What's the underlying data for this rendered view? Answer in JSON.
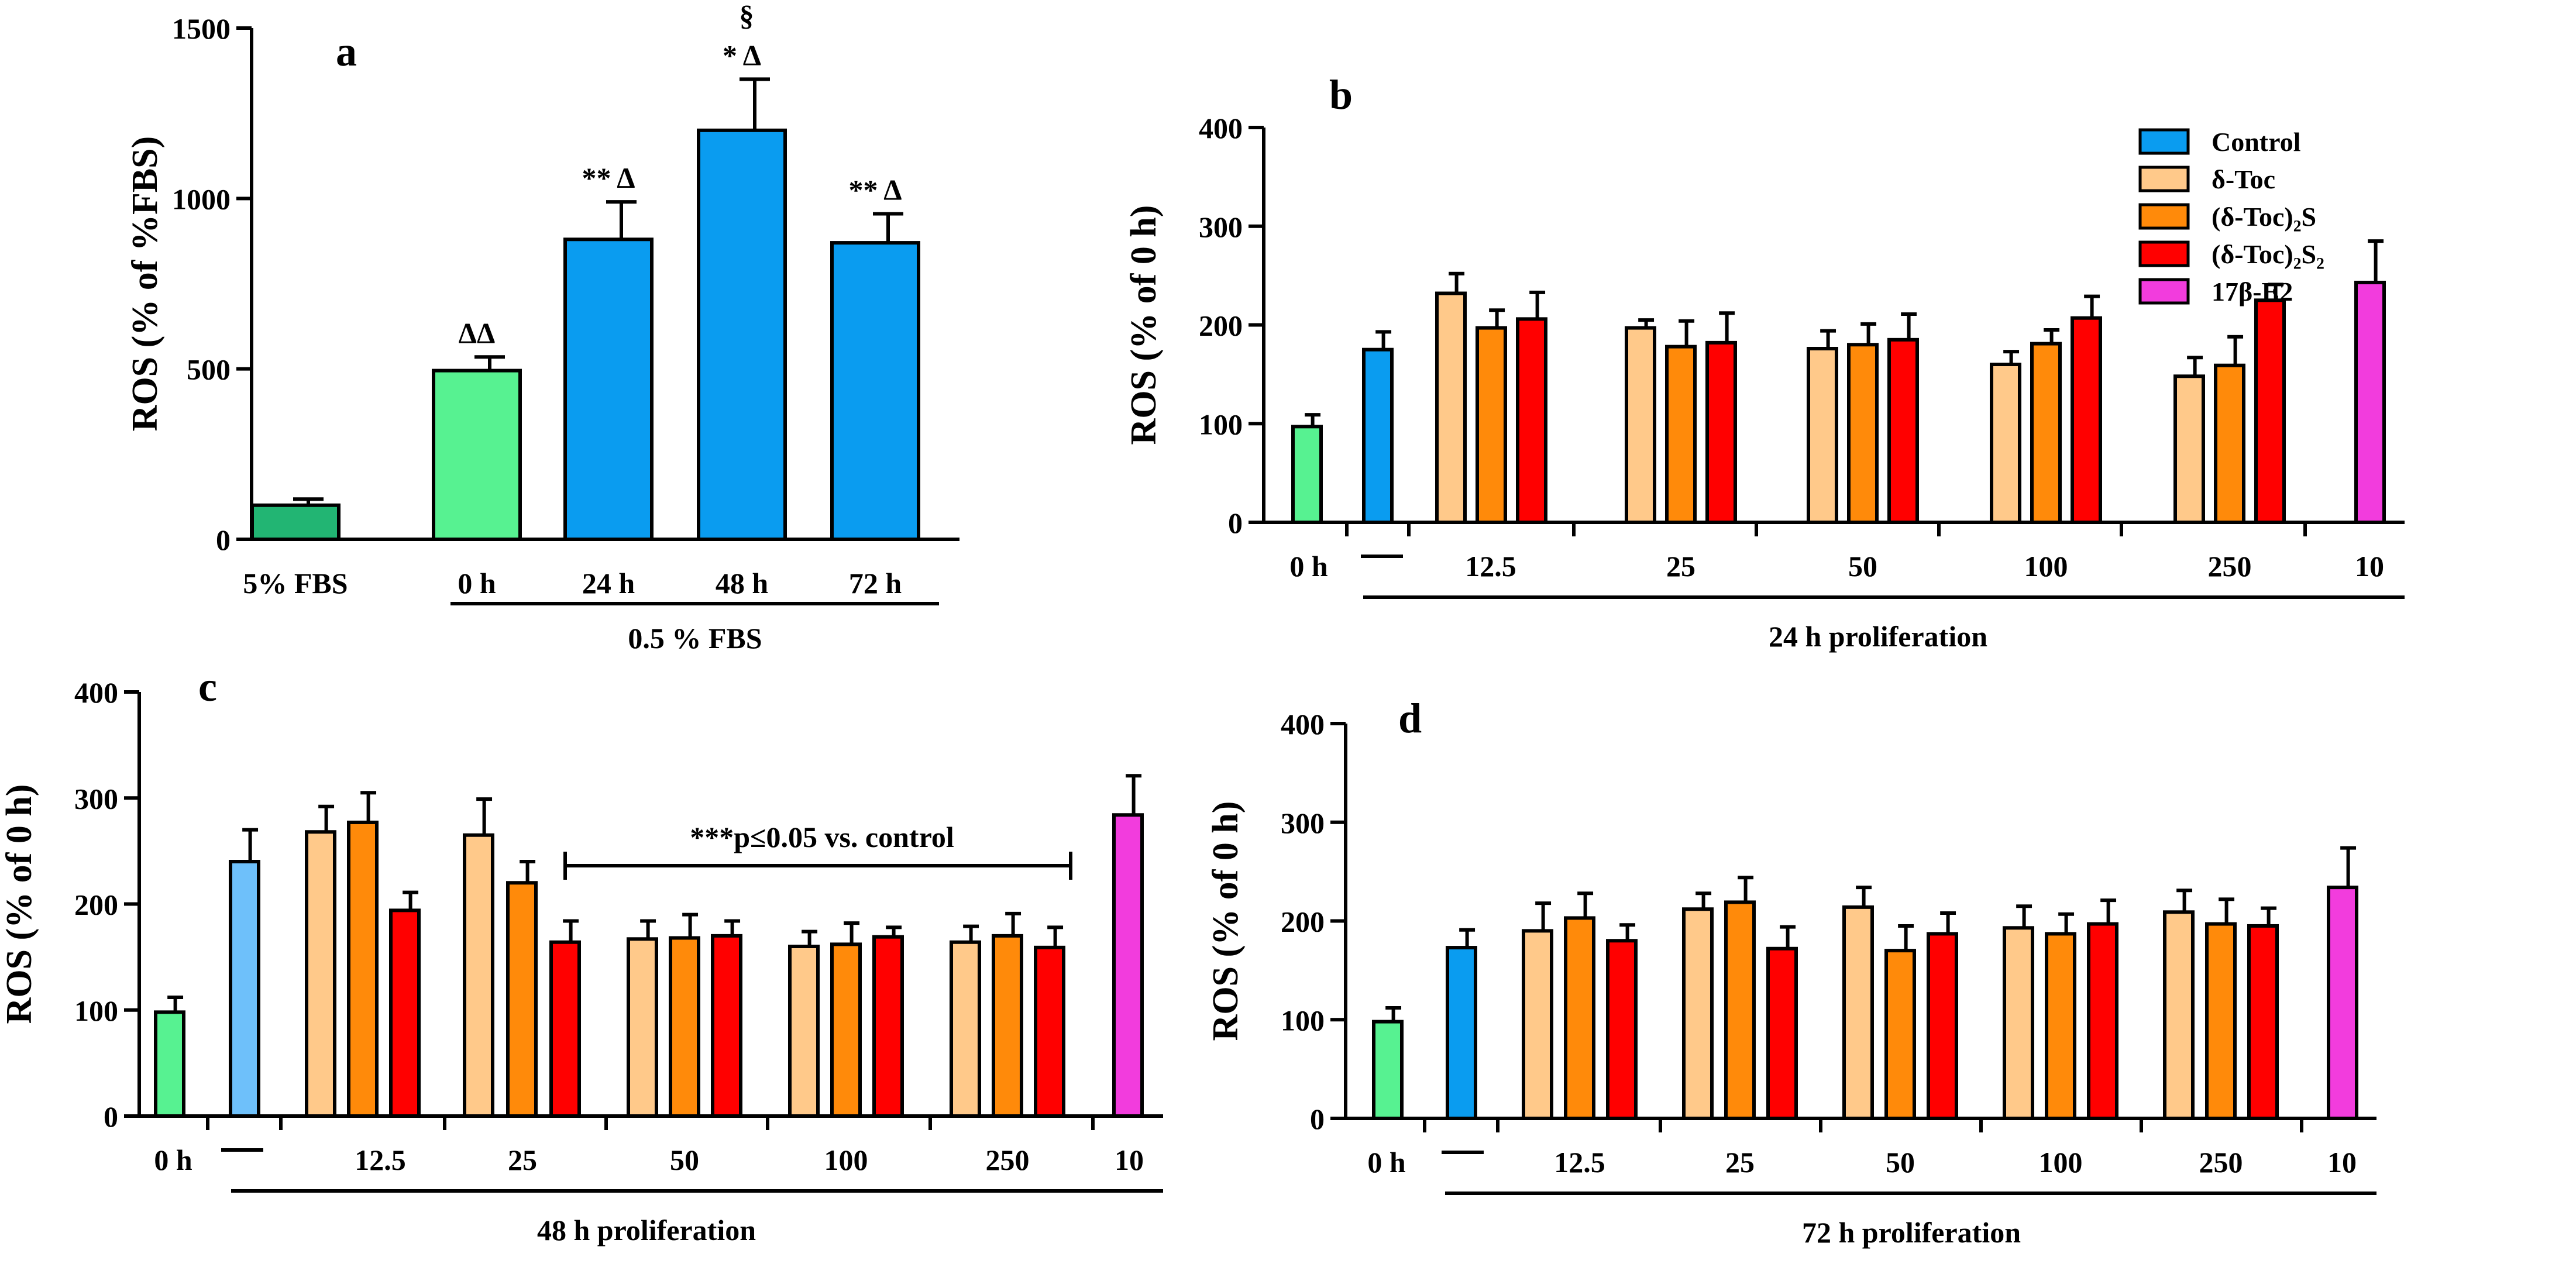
{
  "colors": {
    "dark_green": "#22b573",
    "light_green": "#57f291",
    "blue": "#0a9cf0",
    "light_blue": "#6ec0fa",
    "peach": "#ffc98a",
    "orange": "#ff8a0a",
    "red": "#ff0000",
    "magenta": "#f23cdd"
  },
  "legend": [
    {
      "label": "Control",
      "color": "#0a9cf0"
    },
    {
      "label": "δ-Toc",
      "color": "#ffc98a"
    },
    {
      "label": "(δ-Toc)₂S",
      "color": "#ff8a0a"
    },
    {
      "label": "(δ-Toc)₂S₂",
      "color": "#ff0000"
    },
    {
      "label": "17β-E2",
      "color": "#f23cdd"
    }
  ],
  "chart_data": [
    {
      "panel": "a",
      "type": "bar",
      "ylabel": "ROS (% of %FBS)",
      "ylim": [
        0,
        1500
      ],
      "yticks": [
        0,
        500,
        1000,
        1500
      ],
      "categories": [
        "5% FBS",
        "0 h",
        "24 h",
        "48 h",
        "72 h"
      ],
      "values": [
        100,
        495,
        880,
        1200,
        870
      ],
      "errors": [
        18,
        40,
        110,
        150,
        85
      ],
      "colors": [
        "#22b573",
        "#57f291",
        "#0a9cf0",
        "#0a9cf0",
        "#0a9cf0"
      ],
      "annotations": [
        "",
        "ΔΔ",
        "** Δ",
        "§|* Δ",
        "** Δ"
      ],
      "group_label": "0.5 % FBS"
    },
    {
      "panel": "b",
      "type": "bar",
      "ylabel": "ROS (% of 0 h)",
      "ylim": [
        0,
        400
      ],
      "yticks": [
        0,
        100,
        200,
        300,
        400
      ],
      "categories": [
        "0 h",
        "—",
        "12.5",
        "25",
        "50",
        "100",
        "250",
        "10"
      ],
      "series": [
        {
          "name": "0 h",
          "values": [
            97,
            null,
            null,
            null,
            null,
            null,
            null,
            null
          ],
          "errors": [
            12
          ]
        },
        {
          "name": "Control",
          "values": [
            null,
            175,
            null,
            null,
            null,
            null,
            null,
            null
          ],
          "errors": [
            18
          ]
        },
        {
          "name": "δ-Toc",
          "values": [
            null,
            null,
            232,
            197,
            176,
            160,
            148,
            null
          ]
        },
        {
          "name": "(δ-Toc)₂S",
          "values": [
            null,
            null,
            197,
            178,
            180,
            181,
            159,
            null
          ]
        },
        {
          "name": "(δ-Toc)₂S₂",
          "values": [
            null,
            null,
            206,
            182,
            185,
            207,
            225,
            null
          ]
        },
        {
          "name": "17β-E2",
          "values": [
            null,
            null,
            null,
            null,
            null,
            null,
            null,
            243
          ]
        }
      ],
      "bars": [
        {
          "v": 97,
          "e": 12,
          "c": "#57f291"
        },
        {
          "v": 175,
          "e": 18,
          "c": "#0a9cf0"
        },
        {
          "v": 232,
          "e": 20,
          "c": "#ffc98a"
        },
        {
          "v": 197,
          "e": 18,
          "c": "#ff8a0a"
        },
        {
          "v": 206,
          "e": 27,
          "c": "#ff0000"
        },
        {
          "v": 197,
          "e": 8,
          "c": "#ffc98a"
        },
        {
          "v": 178,
          "e": 26,
          "c": "#ff8a0a"
        },
        {
          "v": 182,
          "e": 30,
          "c": "#ff0000"
        },
        {
          "v": 176,
          "e": 18,
          "c": "#ffc98a"
        },
        {
          "v": 180,
          "e": 21,
          "c": "#ff8a0a"
        },
        {
          "v": 185,
          "e": 26,
          "c": "#ff0000"
        },
        {
          "v": 160,
          "e": 13,
          "c": "#ffc98a"
        },
        {
          "v": 181,
          "e": 14,
          "c": "#ff8a0a"
        },
        {
          "v": 207,
          "e": 22,
          "c": "#ff0000"
        },
        {
          "v": 148,
          "e": 19,
          "c": "#ffc98a"
        },
        {
          "v": 159,
          "e": 29,
          "c": "#ff8a0a"
        },
        {
          "v": 225,
          "e": 16,
          "c": "#ff0000"
        },
        {
          "v": 243,
          "e": 42,
          "c": "#f23cdd"
        }
      ],
      "xlabel": "24 h proliferation"
    },
    {
      "panel": "c",
      "type": "bar",
      "ylabel": "ROS (% of 0 h)",
      "ylim": [
        0,
        400
      ],
      "yticks": [
        0,
        100,
        200,
        300,
        400
      ],
      "categories": [
        "0 h",
        "—",
        "12.5",
        "25",
        "50",
        "100",
        "250",
        "10"
      ],
      "bars": [
        {
          "v": 98,
          "e": 14,
          "c": "#57f291"
        },
        {
          "v": 240,
          "e": 30,
          "c": "#6ec0fa"
        },
        {
          "v": 268,
          "e": 24,
          "c": "#ffc98a"
        },
        {
          "v": 277,
          "e": 28,
          "c": "#ff8a0a"
        },
        {
          "v": 194,
          "e": 17,
          "c": "#ff0000"
        },
        {
          "v": 265,
          "e": 34,
          "c": "#ffc98a"
        },
        {
          "v": 220,
          "e": 20,
          "c": "#ff8a0a"
        },
        {
          "v": 164,
          "e": 20,
          "c": "#ff0000"
        },
        {
          "v": 167,
          "e": 17,
          "c": "#ffc98a"
        },
        {
          "v": 168,
          "e": 22,
          "c": "#ff8a0a"
        },
        {
          "v": 170,
          "e": 14,
          "c": "#ff0000"
        },
        {
          "v": 160,
          "e": 14,
          "c": "#ffc98a"
        },
        {
          "v": 162,
          "e": 20,
          "c": "#ff8a0a"
        },
        {
          "v": 169,
          "e": 9,
          "c": "#ff0000"
        },
        {
          "v": 164,
          "e": 15,
          "c": "#ffc98a"
        },
        {
          "v": 170,
          "e": 21,
          "c": "#ff8a0a"
        },
        {
          "v": 159,
          "e": 19,
          "c": "#ff0000"
        },
        {
          "v": 284,
          "e": 37,
          "c": "#f23cdd"
        }
      ],
      "annotation": "***p≤0.05 vs. control",
      "xlabel": "48 h proliferation"
    },
    {
      "panel": "d",
      "type": "bar",
      "ylabel": "ROS (% of 0 h)",
      "ylim": [
        0,
        400
      ],
      "yticks": [
        0,
        100,
        200,
        300,
        400
      ],
      "categories": [
        "0 h",
        "—",
        "12.5",
        "25",
        "50",
        "100",
        "250",
        "10"
      ],
      "bars": [
        {
          "v": 98,
          "e": 14,
          "c": "#57f291"
        },
        {
          "v": 173,
          "e": 18,
          "c": "#0a9cf0"
        },
        {
          "v": 190,
          "e": 28,
          "c": "#ffc98a"
        },
        {
          "v": 203,
          "e": 25,
          "c": "#ff8a0a"
        },
        {
          "v": 180,
          "e": 16,
          "c": "#ff0000"
        },
        {
          "v": 212,
          "e": 16,
          "c": "#ffc98a"
        },
        {
          "v": 219,
          "e": 25,
          "c": "#ff8a0a"
        },
        {
          "v": 172,
          "e": 22,
          "c": "#ff0000"
        },
        {
          "v": 214,
          "e": 20,
          "c": "#ffc98a"
        },
        {
          "v": 170,
          "e": 25,
          "c": "#ff8a0a"
        },
        {
          "v": 187,
          "e": 21,
          "c": "#ff0000"
        },
        {
          "v": 193,
          "e": 22,
          "c": "#ffc98a"
        },
        {
          "v": 187,
          "e": 20,
          "c": "#ff8a0a"
        },
        {
          "v": 197,
          "e": 24,
          "c": "#ff0000"
        },
        {
          "v": 209,
          "e": 22,
          "c": "#ffc98a"
        },
        {
          "v": 197,
          "e": 25,
          "c": "#ff8a0a"
        },
        {
          "v": 195,
          "e": 18,
          "c": "#ff0000"
        },
        {
          "v": 234,
          "e": 40,
          "c": "#f23cdd"
        }
      ],
      "xlabel": "72 h proliferation"
    }
  ]
}
